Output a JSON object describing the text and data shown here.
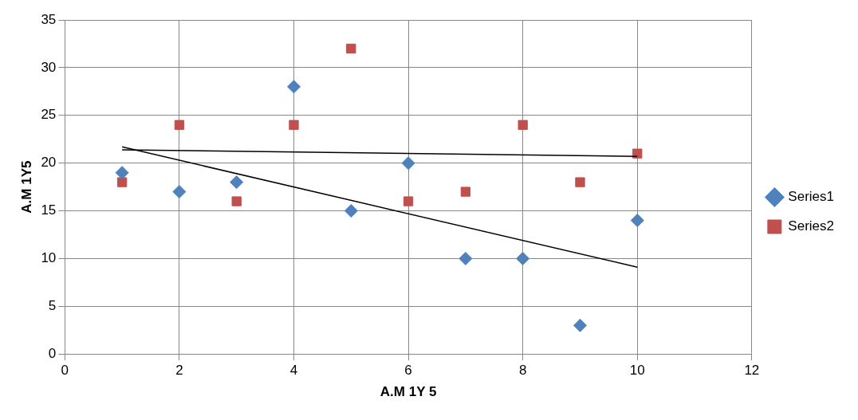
{
  "chart_data": {
    "type": "scatter",
    "xlabel": "A.M 1Y 5",
    "ylabel": "A.M 1Y5",
    "xlim": [
      0,
      12
    ],
    "xticks": [
      0,
      2,
      4,
      6,
      8,
      10,
      12
    ],
    "ylim": [
      0,
      35
    ],
    "yticks": [
      0,
      5,
      10,
      15,
      20,
      25,
      30,
      35
    ],
    "grid": true,
    "legend": "right",
    "series": [
      {
        "name": "Series1",
        "color": "#4f81bd",
        "marker": "diamond",
        "x": [
          1,
          2,
          3,
          4,
          5,
          6,
          7,
          8,
          9,
          10
        ],
        "values": [
          19,
          17,
          18,
          28,
          15,
          20,
          10,
          10,
          3,
          14
        ]
      },
      {
        "name": "Series2",
        "color": "#c0504d",
        "marker": "square",
        "x": [
          1,
          2,
          3,
          4,
          5,
          6,
          7,
          8,
          9,
          10
        ],
        "values": [
          18,
          24,
          16,
          24,
          32,
          16,
          17,
          24,
          18,
          21
        ]
      },
      {
        "type": "line",
        "color": "#000000",
        "marker": "none",
        "x": [
          1,
          10
        ],
        "values": [
          21.7,
          9.1
        ]
      },
      {
        "type": "line",
        "color": "#000000",
        "marker": "none",
        "x": [
          1,
          10
        ],
        "values": [
          21.4,
          20.7
        ]
      }
    ]
  }
}
